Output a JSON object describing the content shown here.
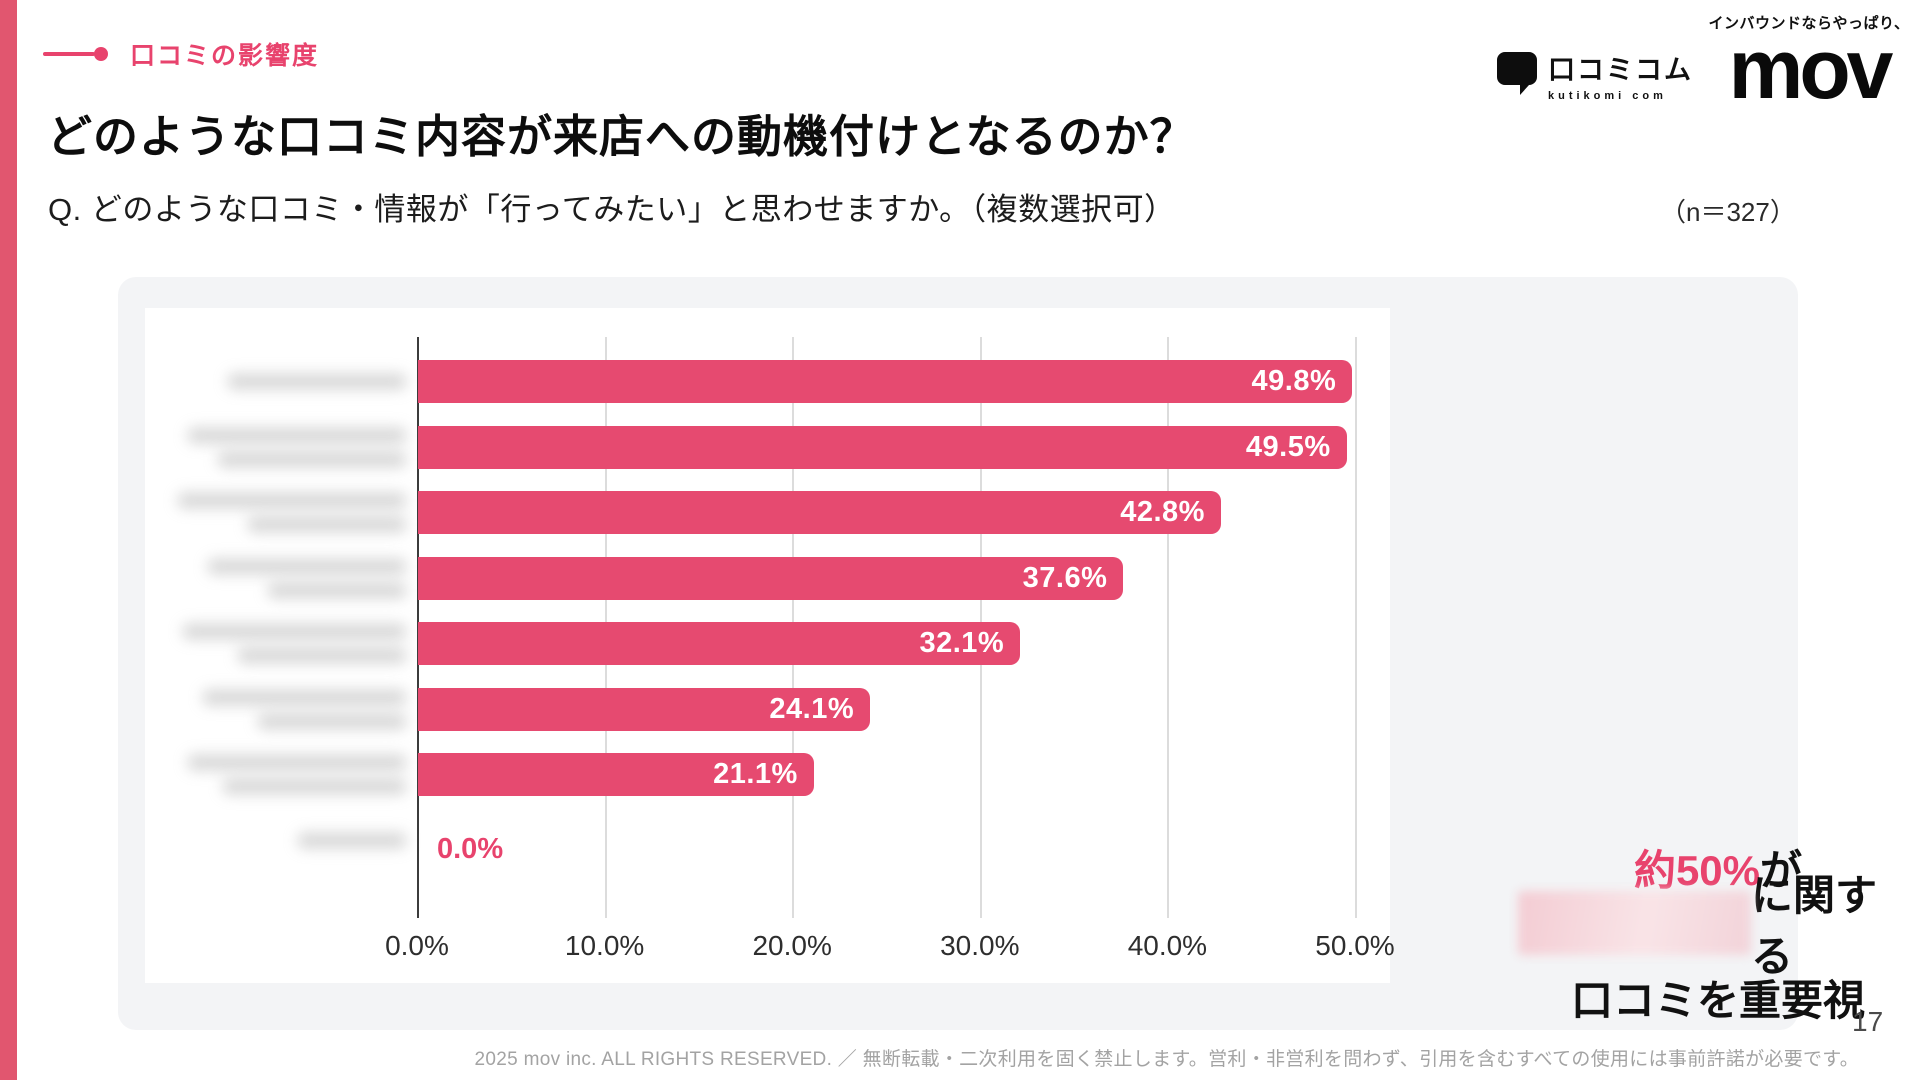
{
  "header": {
    "tag": "口コミの影響度",
    "title": "どのような口コミ内容が来店への動機付けとなるのか？",
    "question": "Q. どのような口コミ・情報が「行ってみたい」と思わせますか。（複数選択可）",
    "sample_size": "（n＝327）",
    "kutikomi_logo": "口コミコム",
    "kutikomi_sub": "kutikomi com",
    "mov_tagline": "インバウンドならやっぱり、",
    "mov_logo": "mov"
  },
  "chart_data": {
    "type": "bar",
    "orientation": "horizontal",
    "title": "",
    "xlabel": "",
    "ylabel": "",
    "grid": true,
    "legend": false,
    "xlim": [
      0,
      50
    ],
    "x_ticks": [
      "0.0%",
      "10.0%",
      "20.0%",
      "30.0%",
      "40.0%",
      "50.0%"
    ],
    "categories_redacted": true,
    "categories": [
      "",
      "",
      "",
      "",
      "",
      "",
      "",
      ""
    ],
    "values": [
      49.8,
      49.5,
      42.8,
      37.6,
      32.1,
      24.1,
      21.1,
      0.0
    ],
    "value_labels": [
      "49.8%",
      "49.5%",
      "42.8%",
      "37.6%",
      "32.1%",
      "24.1%",
      "21.1%",
      "0.0%"
    ],
    "bar_color": "#e64a70",
    "redacted_label_lines": [
      [
        180
      ],
      [
        220,
        190
      ],
      [
        230,
        160
      ],
      [
        200,
        140
      ],
      [
        225,
        170
      ],
      [
        205,
        150
      ],
      [
        220,
        185
      ],
      [
        110
      ]
    ]
  },
  "insight": {
    "highlight": "約50%",
    "line1_suffix": "が",
    "line2_redacted": true,
    "line2_suffix": "に関する",
    "line3": "口コミを重要視"
  },
  "footer": {
    "copyright": "2025 mov inc. ALL RIGHTS RESERVED. ／ 無断転載・二次利用を固く禁止します。営利・非営利を問わず、引用を含むすべての使用には事前許諾が必要です。",
    "page_number": "17"
  },
  "colors": {
    "accent_pink": "#e8436d",
    "bar_pink": "#e64a70",
    "strip_pink": "#e1566f",
    "panel_gray": "#f3f4f6",
    "gridline_gray": "#dcdcdc"
  }
}
